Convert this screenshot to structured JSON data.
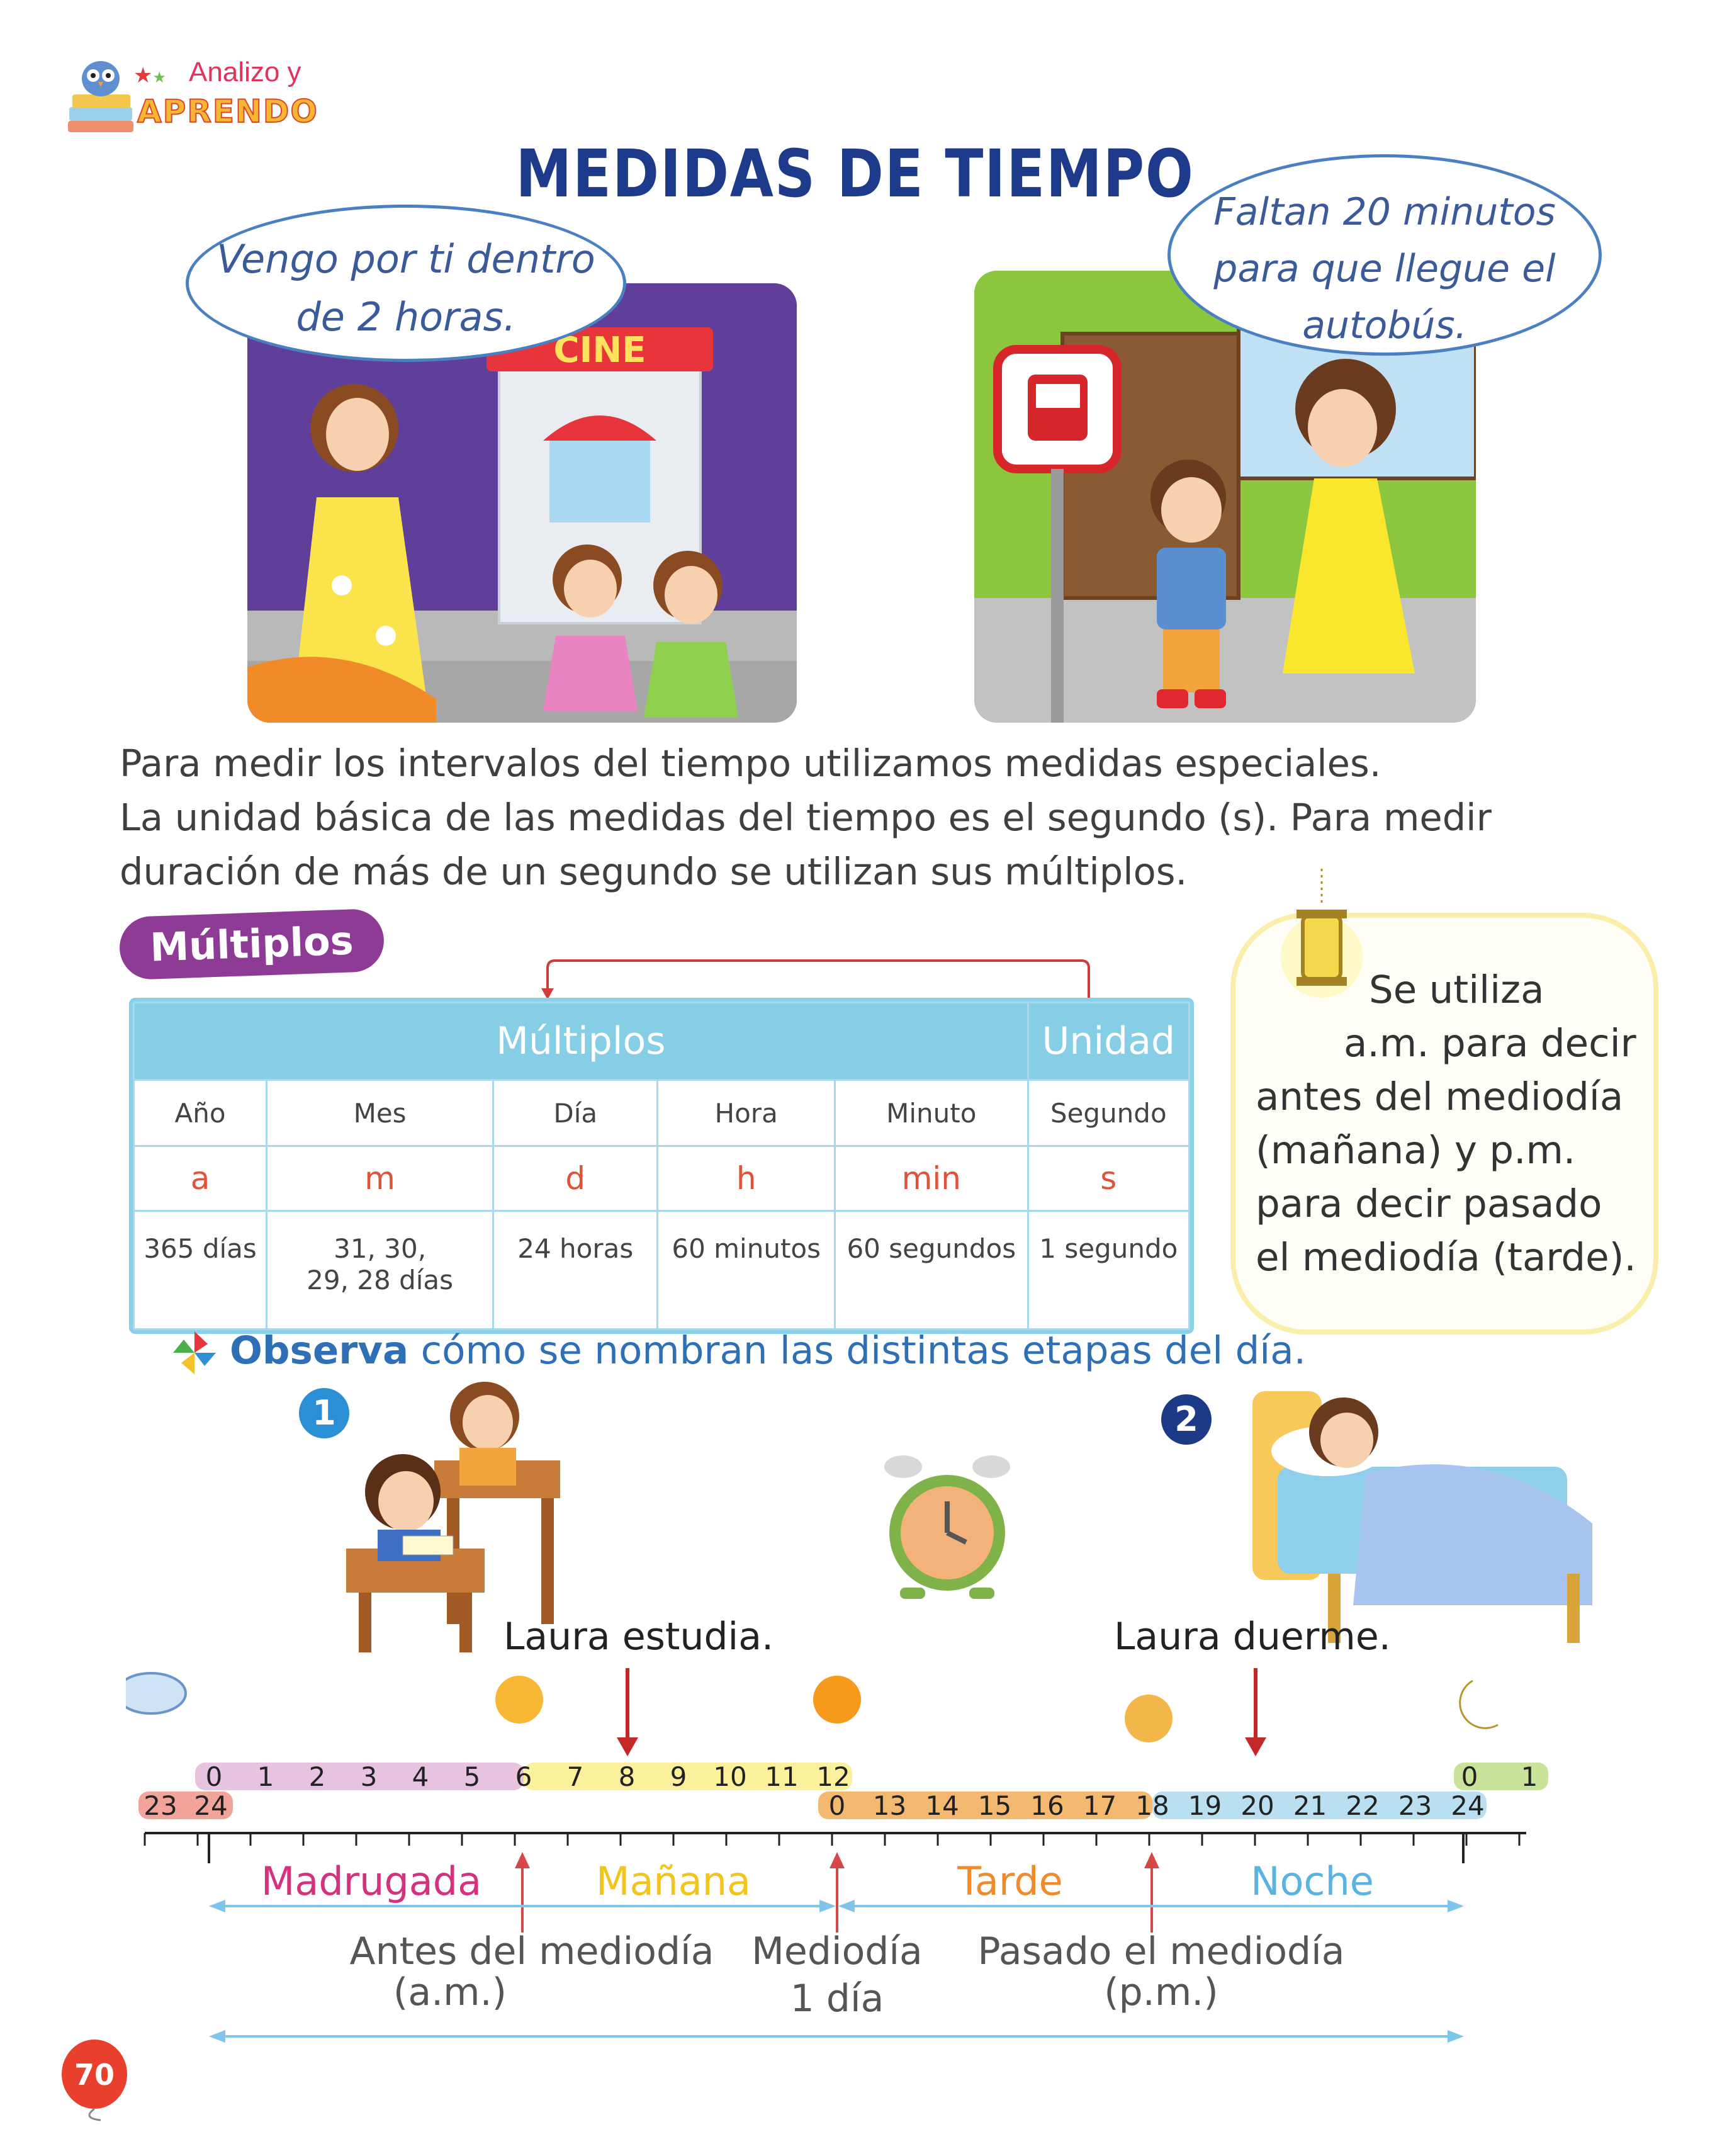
{
  "header": {
    "logo_line1": "Analizo y",
    "logo_line2": "APRENDO"
  },
  "title": "MEDIDAS DE TIEMPO",
  "speech": {
    "left_line1": "Vengo por ti dentro",
    "left_line2": "de 2 horas.",
    "right_line1": "Faltan 20 minutos",
    "right_line2": "para que llegue el",
    "right_line3": "autobús."
  },
  "scene": {
    "cinema_sign": "CINE"
  },
  "intro": {
    "line1": "Para medir los intervalos del tiempo utilizamos medidas especiales.",
    "line2": "La unidad básica de las medidas del tiempo es el segundo (s). Para medir",
    "line3": "duración de más de un segundo se utilizan sus múltiplos."
  },
  "multiplos_badge": "Múltiplos",
  "table": {
    "header_multiplos": "Múltiplos",
    "header_unidad": "Unidad",
    "names": [
      "Año",
      "Mes",
      "Día",
      "Hora",
      "Minuto",
      "Segundo"
    ],
    "symbols": [
      "a",
      "m",
      "d",
      "h",
      "min",
      "s"
    ],
    "equivalences": [
      "365 días",
      "31, 30,",
      "24 horas",
      "60 minutos",
      "60 segundos",
      "1 segundo"
    ],
    "equivalence_mes_line2": "29, 28 días"
  },
  "note": {
    "line1": "Se utiliza",
    "line2": "a.m. para decir",
    "line3": "antes del mediodía",
    "line4": "(mañana) y p.m.",
    "line5": "para decir pasado",
    "line6": "el mediodía (tarde)."
  },
  "observa": {
    "bold": "Observa",
    "rest": " cómo se nombran las distintas etapas del día."
  },
  "badges": {
    "one": "1",
    "two": "2"
  },
  "captions": {
    "study": "Laura estudia.",
    "sleep": "Laura duerme."
  },
  "timeline": {
    "am_hours": [
      "0",
      "1",
      "2",
      "3",
      "4",
      "5",
      "6",
      "7",
      "8",
      "9",
      "10",
      "11",
      "12"
    ],
    "pm_hours": [
      "0",
      "13",
      "14",
      "15",
      "16",
      "17",
      "18",
      "19",
      "20",
      "21",
      "22",
      "23",
      "24"
    ],
    "prev_hours": [
      "23",
      "24"
    ],
    "next_hours": [
      "0",
      "1"
    ],
    "periods": [
      "Madrugada",
      "Mañana",
      "Tarde",
      "Noche"
    ],
    "period_colors": [
      "#d6317c",
      "#f2c41c",
      "#ef8b2c",
      "#5ab3e0"
    ],
    "band_colors": {
      "madrugada": "#e7c3df",
      "manana": "#fbf09b",
      "tarde": "#f4b970",
      "noche": "#b9dff0",
      "prev": "#f2a39a",
      "next": "#c9e49a"
    },
    "label_am_1": "Antes del mediodía",
    "label_am_2": "(a.m.)",
    "label_noon_1": "Mediodía",
    "label_noon_2": "1 día",
    "label_pm_1": "Pasado el mediodía",
    "label_pm_2": "(p.m.)"
  },
  "page_number": "70"
}
